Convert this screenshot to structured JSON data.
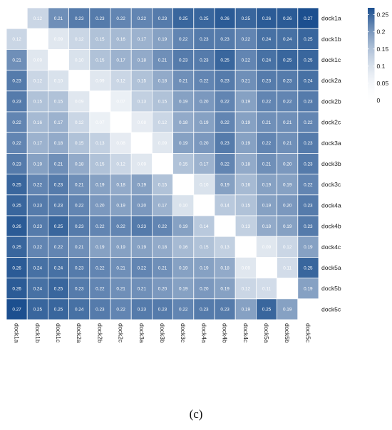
{
  "chart_data": {
    "type": "heatmap",
    "x_labels": [
      "dock1a",
      "dock1b",
      "dock1c",
      "dock2a",
      "dock2b",
      "dock2c",
      "dock3a",
      "dock3b",
      "dock3c",
      "dock4a",
      "dock4b",
      "dock4c",
      "dock5a",
      "dock5b",
      "dock5c"
    ],
    "y_labels": [
      "dock1a",
      "dock1b",
      "dock1c",
      "dock2a",
      "dock2b",
      "dock2c",
      "dock3a",
      "dock3b",
      "dock3c",
      "dock4a",
      "dock4b",
      "dock4c",
      "dock5a",
      "dock5b",
      "dock5c"
    ],
    "values": [
      [
        null,
        0.12,
        0.21,
        0.23,
        0.23,
        0.22,
        0.22,
        0.23,
        0.25,
        0.25,
        0.26,
        0.25,
        0.26,
        0.26,
        0.27
      ],
      [
        0.12,
        null,
        0.09,
        0.12,
        0.15,
        0.16,
        0.17,
        0.19,
        0.22,
        0.23,
        0.23,
        0.22,
        0.24,
        0.24,
        0.25
      ],
      [
        0.21,
        0.09,
        null,
        0.1,
        0.15,
        0.17,
        0.18,
        0.21,
        0.23,
        0.23,
        0.25,
        0.22,
        0.24,
        0.25,
        0.25
      ],
      [
        0.23,
        0.12,
        0.1,
        null,
        0.09,
        0.12,
        0.15,
        0.18,
        0.21,
        0.22,
        0.23,
        0.21,
        0.23,
        0.23,
        0.24
      ],
      [
        0.23,
        0.15,
        0.15,
        0.09,
        null,
        0.07,
        0.13,
        0.15,
        0.19,
        0.2,
        0.22,
        0.19,
        0.22,
        0.22,
        0.23
      ],
      [
        0.22,
        0.16,
        0.17,
        0.12,
        0.07,
        null,
        0.08,
        0.12,
        0.18,
        0.19,
        0.22,
        0.19,
        0.21,
        0.21,
        0.22
      ],
      [
        0.22,
        0.17,
        0.18,
        0.15,
        0.13,
        0.08,
        null,
        0.09,
        0.19,
        0.2,
        0.23,
        0.19,
        0.22,
        0.21,
        0.23
      ],
      [
        0.23,
        0.19,
        0.21,
        0.18,
        0.15,
        0.12,
        0.09,
        null,
        0.15,
        0.17,
        0.22,
        0.18,
        0.21,
        0.2,
        0.23
      ],
      [
        0.25,
        0.22,
        0.23,
        0.21,
        0.19,
        0.18,
        0.19,
        0.15,
        null,
        0.1,
        0.19,
        0.16,
        0.19,
        0.19,
        0.22
      ],
      [
        0.25,
        0.23,
        0.23,
        0.22,
        0.2,
        0.19,
        0.2,
        0.17,
        0.1,
        null,
        0.14,
        0.15,
        0.19,
        0.2,
        0.23
      ],
      [
        0.26,
        0.23,
        0.25,
        0.23,
        0.22,
        0.22,
        0.23,
        0.22,
        0.19,
        0.14,
        null,
        0.13,
        0.18,
        0.19,
        0.23
      ],
      [
        0.25,
        0.22,
        0.22,
        0.21,
        0.19,
        0.19,
        0.19,
        0.18,
        0.16,
        0.15,
        0.13,
        null,
        0.09,
        0.12,
        0.19
      ],
      [
        0.26,
        0.24,
        0.24,
        0.23,
        0.22,
        0.21,
        0.22,
        0.21,
        0.19,
        0.19,
        0.18,
        0.09,
        null,
        0.11,
        0.25
      ],
      [
        0.26,
        0.24,
        0.25,
        0.23,
        0.22,
        0.21,
        0.21,
        0.2,
        0.19,
        0.2,
        0.19,
        0.12,
        0.11,
        null,
        0.19
      ],
      [
        0.27,
        0.25,
        0.25,
        0.24,
        0.23,
        0.22,
        0.23,
        0.23,
        0.22,
        0.23,
        0.23,
        0.19,
        0.25,
        0.19,
        null
      ]
    ],
    "value_format_decimals": 2,
    "legend": {
      "position": "right",
      "ticks": [
        0.25,
        0.2,
        0.15,
        0.1,
        0.05,
        0
      ],
      "range": [
        0,
        0.27
      ],
      "color_low": "#ffffff",
      "color_high": "#1c4f8f"
    },
    "grid": true
  },
  "panel_label": "(c)"
}
